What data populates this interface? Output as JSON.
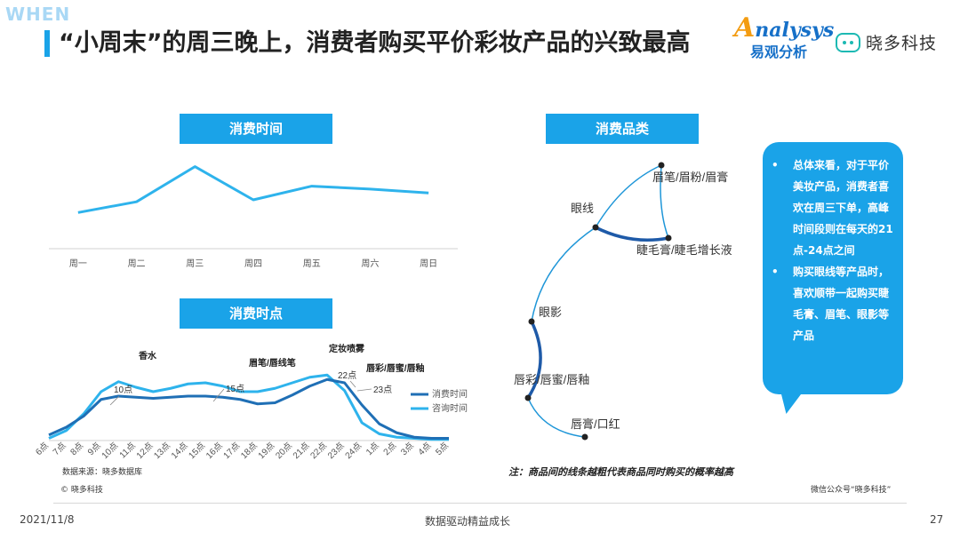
{
  "header": {
    "tag": "WHEN",
    "title": "“小周末”的周三晚上，消费者购买平价彩妆产品的兴致最高"
  },
  "logos": {
    "analysys_a": "A",
    "analysys_rest": "nalysys",
    "analysys_cn": "易观分析",
    "xiaoduo": "晓多科技"
  },
  "panels": {
    "week_label": "消费时间",
    "hour_label": "消费时点",
    "category_label": "消费品类"
  },
  "bubble": {
    "point1": "总体来看，对于平价美妆产品，消费者喜欢在周三下单，高峰时间段则在每天的21点-24点之间",
    "point2": "购买眼线等产品时，喜欢顺带一起购买睫毛膏、眉笔、眼影等产品"
  },
  "footer": {
    "source": "数据来源：晓多数据库",
    "note": "注：商品间的线条越粗代表商品同时购买的概率越高",
    "copyright": "© 晓多科技",
    "wechat": "微信公众号“晓多科技”",
    "date": "2021/11/8",
    "middle": "数据驱动精益成长",
    "page": "27"
  },
  "colors": {
    "primary": "#1aa3e8",
    "line_light": "#2eb3ec",
    "line_dark": "#1f6fb5",
    "network": "#1e96d8",
    "network_thick": "#1e5aa8"
  },
  "chart_data": [
    {
      "type": "line",
      "categories": [
        "周一",
        "周二",
        "周三",
        "周四",
        "周五",
        "周六",
        "周日"
      ],
      "series": [
        {
          "values": [
            37,
            48,
            84,
            50,
            64,
            61,
            57
          ]
        }
      ],
      "ylim": [
        0,
        100
      ]
    },
    {
      "type": "line",
      "categories": [
        "6点",
        "7点",
        "8点",
        "9点",
        "10点",
        "11点",
        "12点",
        "13点",
        "14点",
        "15点",
        "16点",
        "17点",
        "18点",
        "19点",
        "20点",
        "21点",
        "22点",
        "23点",
        "24点",
        "1点",
        "2点",
        "3点",
        "4点",
        "5点"
      ],
      "series": [
        {
          "name": "消费时间",
          "values": [
            5,
            12,
            22,
            37,
            40,
            39,
            38,
            39,
            40,
            40,
            39,
            37,
            33,
            34,
            41,
            49,
            55,
            52,
            32,
            15,
            7,
            3,
            2,
            2
          ]
        },
        {
          "name": "咨询时间",
          "values": [
            2,
            9,
            24,
            44,
            53,
            48,
            44,
            47,
            51,
            52,
            49,
            44,
            44,
            47,
            52,
            57,
            59,
            45,
            16,
            6,
            3,
            2,
            1,
            1
          ]
        }
      ],
      "ylim": [
        0,
        80
      ],
      "legend": "right",
      "annotations": [
        "香水",
        "眉笔/唇线笔",
        "定妆喷雾",
        "唇彩/唇蜜/唇釉",
        "10点",
        "15点",
        "22点",
        "23点"
      ]
    },
    {
      "type": "network",
      "nodes": [
        "眉笔/眉粉/眉膏",
        "眼线",
        "睫毛膏/睫毛增长液",
        "眼影",
        "唇彩/唇蜜/唇釉",
        "唇膏/口红"
      ],
      "edges": [
        {
          "from": "眼线",
          "to": "眉笔/眉粉/眉膏",
          "weight": 1
        },
        {
          "from": "眉笔/眉粉/眉膏",
          "to": "睫毛膏/睫毛增长液",
          "weight": 1
        },
        {
          "from": "眼线",
          "to": "睫毛膏/睫毛增长液",
          "weight": 3
        },
        {
          "from": "眼线",
          "to": "眼影",
          "weight": 1
        },
        {
          "from": "眼影",
          "to": "唇彩/唇蜜/唇釉",
          "weight": 3
        },
        {
          "from": "唇彩/唇蜜/唇釉",
          "to": "唇膏/口红",
          "weight": 1
        }
      ]
    }
  ]
}
